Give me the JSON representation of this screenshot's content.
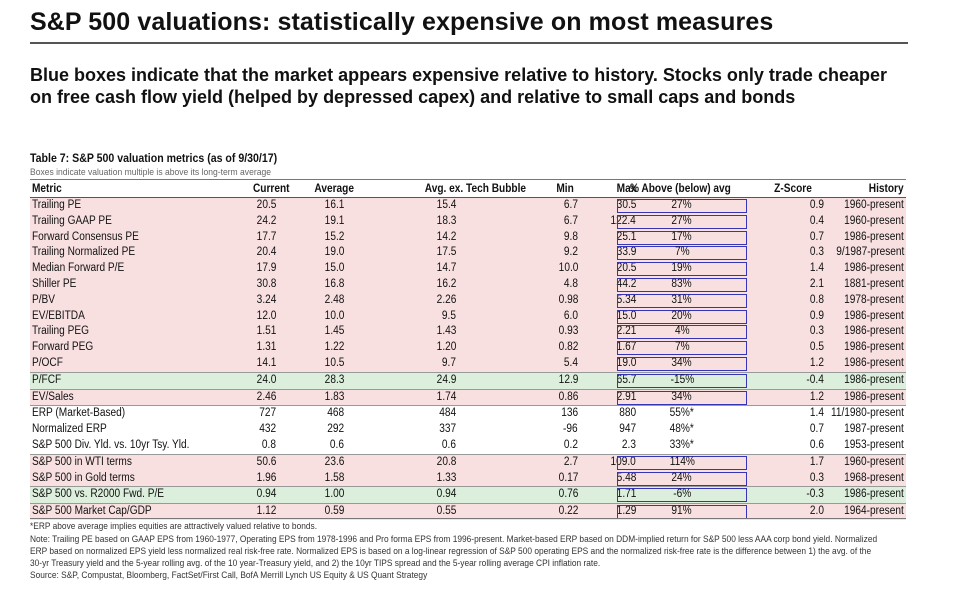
{
  "title": "S&P 500 valuations: statistically expensive on most measures",
  "subtitle": "Blue boxes indicate that the market appears expensive relative to history. Stocks only trade cheaper on free cash flow yield (helped by depressed capex) and relative to small caps and bonds",
  "table_title": "Table 7: S&P 500 valuation metrics (as of 9/30/17)",
  "table_note": "Boxes indicate valuation multiple is above its long-term average",
  "headers": {
    "metric": "Metric",
    "current": "Current",
    "average": "Average",
    "avg_ex": "Avg. ex. Tech Bubble",
    "min": "Min",
    "max": "Max",
    "above": "% Above (below) avg",
    "z": "Z-Score",
    "history": "History"
  },
  "rows": [
    {
      "metric": "Trailing PE",
      "current": "20.5",
      "average": "16.1",
      "avg_ex": "15.4",
      "min": "6.7",
      "max": "30.5",
      "above": "27%",
      "z": "0.9",
      "history": "1960-present"
    },
    {
      "metric": "Trailing GAAP PE",
      "current": "24.2",
      "average": "19.1",
      "avg_ex": "18.3",
      "min": "6.7",
      "max": "122.4",
      "above": "27%",
      "z": "0.4",
      "history": "1960-present"
    },
    {
      "metric": "Forward Consensus PE",
      "current": "17.7",
      "average": "15.2",
      "avg_ex": "14.2",
      "min": "9.8",
      "max": "25.1",
      "above": "17%",
      "z": "0.7",
      "history": "1986-present"
    },
    {
      "metric": "Trailing Normalized PE",
      "current": "20.4",
      "average": "19.0",
      "avg_ex": "17.5",
      "min": "9.2",
      "max": "33.9",
      "above": "7%",
      "z": "0.3",
      "history": "9/1987-present"
    },
    {
      "metric": "Median Forward P/E",
      "current": "17.9",
      "average": "15.0",
      "avg_ex": "14.7",
      "min": "10.0",
      "max": "20.5",
      "above": "19%",
      "z": "1.4",
      "history": "1986-present"
    },
    {
      "metric": "Shiller PE",
      "current": "30.8",
      "average": "16.8",
      "avg_ex": "16.2",
      "min": "4.8",
      "max": "44.2",
      "above": "83%",
      "z": "2.1",
      "history": "1881-present"
    },
    {
      "metric": "P/BV",
      "current": "3.24",
      "average": "2.48",
      "avg_ex": "2.26",
      "min": "0.98",
      "max": "5.34",
      "above": "31%",
      "z": "0.8",
      "history": "1978-present"
    },
    {
      "metric": "EV/EBITDA",
      "current": "12.0",
      "average": "10.0",
      "avg_ex": "9.5",
      "min": "6.0",
      "max": "15.0",
      "above": "20%",
      "z": "0.9",
      "history": "1986-present"
    },
    {
      "metric": "Trailing PEG",
      "current": "1.51",
      "average": "1.45",
      "avg_ex": "1.43",
      "min": "0.93",
      "max": "2.21",
      "above": "4%",
      "z": "0.3",
      "history": "1986-present"
    },
    {
      "metric": "Forward PEG",
      "current": "1.31",
      "average": "1.22",
      "avg_ex": "1.20",
      "min": "0.82",
      "max": "1.67",
      "above": "7%",
      "z": "0.5",
      "history": "1986-present"
    },
    {
      "metric": "P/OCF",
      "current": "14.1",
      "average": "10.5",
      "avg_ex": "9.7",
      "min": "5.4",
      "max": "19.0",
      "above": "34%",
      "z": "1.2",
      "history": "1986-present"
    },
    {
      "metric": "P/FCF",
      "current": "24.0",
      "average": "28.3",
      "avg_ex": "24.9",
      "min": "12.9",
      "max": "65.7",
      "above": "-15%",
      "z": "-0.4",
      "history": "1986-present"
    },
    {
      "metric": "EV/Sales",
      "current": "2.46",
      "average": "1.83",
      "avg_ex": "1.74",
      "min": "0.86",
      "max": "2.91",
      "above": "34%",
      "z": "1.2",
      "history": "1986-present"
    },
    {
      "metric": "ERP (Market-Based)",
      "current": "727",
      "average": "468",
      "avg_ex": "484",
      "min": "136",
      "max": "880",
      "above": "55%*",
      "z": "1.4",
      "history": "11/1980-present"
    },
    {
      "metric": "Normalized ERP",
      "current": "432",
      "average": "292",
      "avg_ex": "337",
      "min": "-96",
      "max": "947",
      "above": "48%*",
      "z": "0.7",
      "history": "1987-present"
    },
    {
      "metric": "S&P 500 Div. Yld. vs. 10yr Tsy. Yld.",
      "current": "0.8",
      "average": "0.6",
      "avg_ex": "0.6",
      "min": "0.2",
      "max": "2.3",
      "above": "33%*",
      "z": "0.6",
      "history": "1953-present"
    },
    {
      "metric": "S&P 500 in WTI terms",
      "current": "50.6",
      "average": "23.6",
      "avg_ex": "20.8",
      "min": "2.7",
      "max": "109.0",
      "above": "114%",
      "z": "1.7",
      "history": "1960-present"
    },
    {
      "metric": "S&P 500 in Gold terms",
      "current": "1.96",
      "average": "1.58",
      "avg_ex": "1.33",
      "min": "0.17",
      "max": "5.48",
      "above": "24%",
      "z": "0.3",
      "history": "1968-present"
    },
    {
      "metric": "S&P 500 vs. R2000 Fwd. P/E",
      "current": "0.94",
      "average": "1.00",
      "avg_ex": "0.94",
      "min": "0.76",
      "max": "1.71",
      "above": "-6%",
      "z": "-0.3",
      "history": "1986-present"
    },
    {
      "metric": "S&P 500 Market Cap/GDP",
      "current": "1.12",
      "average": "0.59",
      "avg_ex": "0.55",
      "min": "0.22",
      "max": "1.29",
      "above": "91%",
      "z": "2.0",
      "history": "1964-present"
    }
  ],
  "footnotes": {
    "f1": "*ERP above average implies equities are attractively valued relative to bonds.",
    "f2": "Note: Trailing PE based on GAAP EPS from 1960-1977, Operating EPS from 1978-1996 and Pro forma EPS from 1996-present. Market-based ERP based on DDM-implied return for S&P 500 less AAA corp bond yield. Normalized",
    "f3": "ERP based on normalized EPS yield less normalized real risk-free rate. Normalized EPS is based on a log-linear regression of S&P 500 operating EPS and the normalized risk-free rate is the difference between 1) the avg. of the",
    "f4": "30-yr Treasury yield and the 5-year rolling avg. of the 10 year-Treasury yield, and 2) the 10yr TIPS spread and the 5-year rolling average CPI inflation rate.",
    "f5": "Source: S&P, Compustat, Bloomberg, FactSet/First Call, BofA Merrill Lynch US Equity & US Quant Strategy"
  },
  "colors": {
    "expensive_row_bg": "#f8e0e1",
    "cheap_row_bg": "#dcefdc",
    "box_outline": "#3535b5"
  }
}
